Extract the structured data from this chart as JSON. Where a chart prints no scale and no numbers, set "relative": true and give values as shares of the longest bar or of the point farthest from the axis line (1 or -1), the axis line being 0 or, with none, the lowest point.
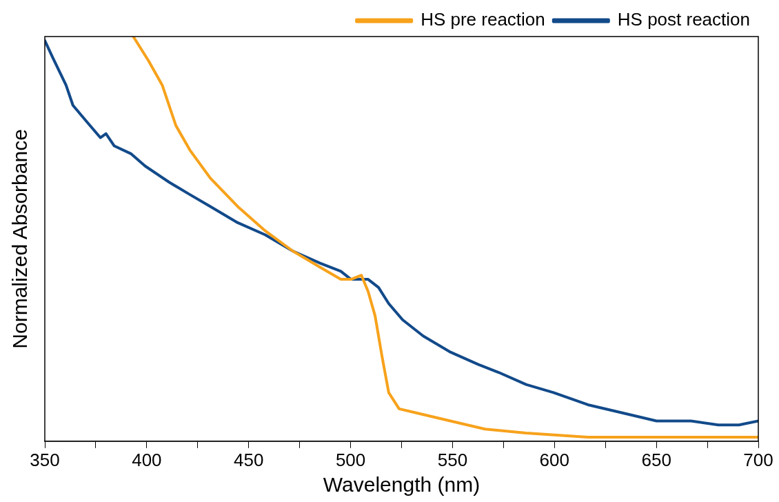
{
  "chart_data": {
    "type": "line",
    "relative": true,
    "xlabel": "Wavelength (nm)",
    "ylabel": "Normalized Absorbance",
    "xlim": [
      350,
      700
    ],
    "xticks": [
      350,
      {
        "value": 375,
        "label": null
      },
      400,
      {
        "value": 425,
        "label": null
      },
      450,
      {
        "value": 475,
        "label": null
      },
      500,
      {
        "value": 525,
        "label": null
      },
      550,
      {
        "value": 575,
        "label": null
      },
      600,
      {
        "value": 625,
        "label": null
      },
      650,
      {
        "value": 675,
        "label": null
      },
      700
    ],
    "legend": "top right",
    "grid": false,
    "marker": "none",
    "line_style": "solid",
    "series": [
      {
        "name": "HS pre reaction",
        "color": "#f7a21b",
        "x": [
          393.4,
          400.9,
          407.6,
          414.3,
          421.1,
          431.2,
          444.6,
          458.1,
          471.6,
          485,
          495.2,
          500.2,
          505.3,
          508.6,
          512,
          515.4,
          518.7,
          523.8,
          532.2,
          549,
          565.9,
          586.1,
          616.4,
          667,
          700
        ],
        "values": [
          1.0,
          0.94,
          0.88,
          0.78,
          0.72,
          0.65,
          0.58,
          0.52,
          0.47,
          0.43,
          0.4,
          0.4,
          0.41,
          0.37,
          0.31,
          0.21,
          0.12,
          0.08,
          0.07,
          0.05,
          0.03,
          0.02,
          0.01,
          0.01,
          0.01
        ]
      },
      {
        "name": "HS post reaction",
        "color": "#124a8a",
        "x": [
          350,
          353.7,
          360.4,
          363.8,
          370.5,
          377.3,
          380,
          384,
          392.4,
          399.2,
          411,
          421,
          431.2,
          444.6,
          458.1,
          471.6,
          485,
          495.2,
          500.2,
          508.6,
          513.7,
          518.7,
          525.5,
          535.6,
          549,
          562.5,
          572.6,
          586.1,
          599.6,
          616.4,
          633.3,
          650.1,
          667,
          680.4,
          690.5,
          700
        ],
        "values": [
          0.99,
          0.95,
          0.88,
          0.83,
          0.79,
          0.75,
          0.76,
          0.73,
          0.71,
          0.68,
          0.64,
          0.61,
          0.58,
          0.54,
          0.51,
          0.47,
          0.44,
          0.42,
          0.4,
          0.4,
          0.38,
          0.34,
          0.3,
          0.26,
          0.22,
          0.19,
          0.17,
          0.14,
          0.12,
          0.09,
          0.07,
          0.05,
          0.05,
          0.04,
          0.04,
          0.05
        ]
      }
    ]
  }
}
